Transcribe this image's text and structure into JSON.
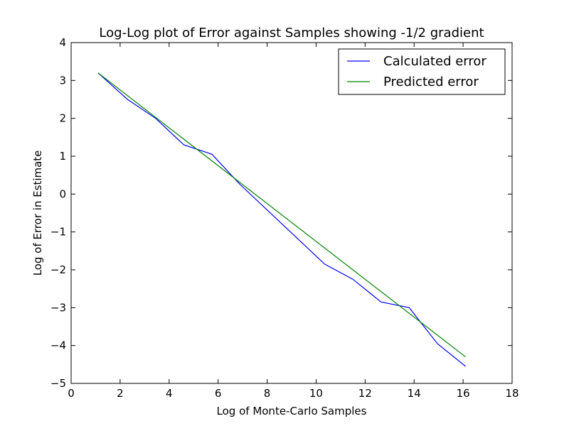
{
  "chart_data": {
    "type": "line",
    "title": "Log-Log plot of Error against Samples showing -1/2 gradient",
    "xlabel": "Log of Monte-Carlo Samples",
    "ylabel": "Log of Error in Estimate",
    "xlim": [
      0,
      18
    ],
    "ylim": [
      -5,
      4
    ],
    "xticks": [
      0,
      2,
      4,
      6,
      8,
      10,
      12,
      14,
      16,
      18
    ],
    "yticks": [
      -5,
      -4,
      -3,
      -2,
      -1,
      0,
      1,
      2,
      3,
      4
    ],
    "xtick_labels": [
      "0",
      "2",
      "4",
      "6",
      "8",
      "10",
      "12",
      "14",
      "16",
      "18"
    ],
    "ytick_labels": [
      "−5",
      "−4",
      "−3",
      "−2",
      "−1",
      "0",
      "1",
      "2",
      "3",
      "4"
    ],
    "grid": false,
    "legend_position": "top-right",
    "series": [
      {
        "name": "Calculated error",
        "color": "#0000ff",
        "x": [
          1.1,
          2.3,
          3.45,
          4.6,
          5.75,
          6.9,
          8.05,
          9.2,
          10.35,
          11.5,
          12.65,
          13.8,
          14.95,
          16.1
        ],
        "y": [
          3.2,
          2.5,
          2.0,
          1.3,
          1.05,
          0.25,
          -0.45,
          -1.15,
          -1.85,
          -2.25,
          -2.85,
          -3.0,
          -3.95,
          -4.55
        ]
      },
      {
        "name": "Predicted error",
        "color": "#008000",
        "x": [
          1.1,
          16.1
        ],
        "y": [
          3.2,
          -4.3
        ]
      }
    ]
  }
}
